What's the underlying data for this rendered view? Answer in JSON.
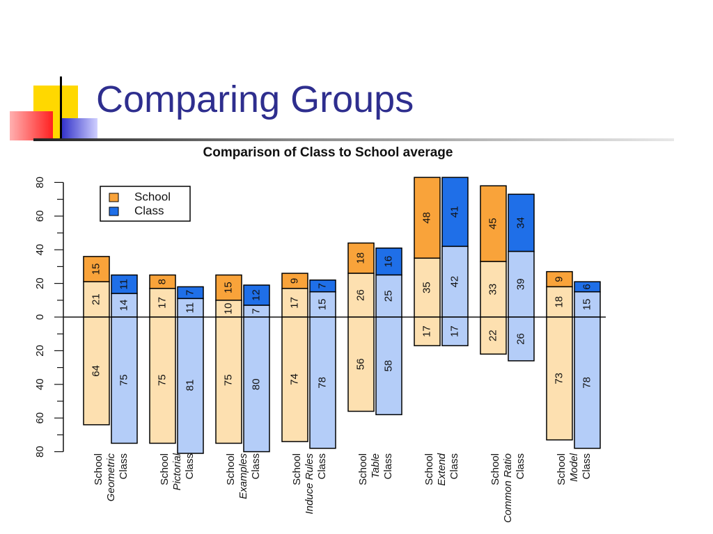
{
  "slide": {
    "title": "Comparing Groups"
  },
  "chart_data": {
    "type": "bar",
    "title": "Comparison of Class to School average",
    "ylim": [
      -80,
      80
    ],
    "yticks": [
      80,
      60,
      40,
      20,
      0,
      20,
      40,
      60,
      80
    ],
    "legend": {
      "placement": "top-left",
      "entries": [
        {
          "name": "School",
          "color": "#f9a33a"
        },
        {
          "name": "Class",
          "color": "#1f6fe8"
        }
      ]
    },
    "colors": {
      "school_dark": "#f9a33a",
      "school_light": "#fde0b0",
      "class_dark": "#1f6fe8",
      "class_light": "#b4cdf8"
    },
    "groups": [
      {
        "labels": [
          "School",
          "Geometric",
          "Class"
        ],
        "school": {
          "top": 15,
          "mid": 21,
          "bottom": 64
        },
        "class": {
          "top": 11,
          "mid": 14,
          "bottom": 75
        }
      },
      {
        "labels": [
          "School",
          "Pictorial",
          "Class"
        ],
        "school": {
          "top": 8,
          "mid": 17,
          "bottom": 75
        },
        "class": {
          "top": 7,
          "mid": 11,
          "bottom": 81
        }
      },
      {
        "labels": [
          "School",
          "Examples",
          "Class"
        ],
        "school": {
          "top": 15,
          "mid": 10,
          "bottom": 75
        },
        "class": {
          "top": 12,
          "mid": 7,
          "bottom": 80
        }
      },
      {
        "labels": [
          "School",
          "Induce Rules",
          "Class"
        ],
        "school": {
          "top": 9,
          "mid": 17,
          "bottom": 74
        },
        "class": {
          "top": 7,
          "mid": 15,
          "bottom": 78
        }
      },
      {
        "labels": [
          "School",
          "Table",
          "Class"
        ],
        "school": {
          "top": 18,
          "mid": 26,
          "bottom": 56
        },
        "class": {
          "top": 16,
          "mid": 25,
          "bottom": 58
        }
      },
      {
        "labels": [
          "School",
          "Extend",
          "Class"
        ],
        "school": {
          "top": 48,
          "mid": 35,
          "bottom": 17
        },
        "class": {
          "top": 41,
          "mid": 42,
          "bottom": 17
        }
      },
      {
        "labels": [
          "School",
          "Common Ratio",
          "Class"
        ],
        "school": {
          "top": 45,
          "mid": 33,
          "bottom": 22
        },
        "class": {
          "top": 34,
          "mid": 39,
          "bottom": 26
        }
      },
      {
        "labels": [
          "School",
          "Model",
          "Class"
        ],
        "school": {
          "top": 9,
          "mid": 18,
          "bottom": 73
        },
        "class": {
          "top": 6,
          "mid": 15,
          "bottom": 78
        }
      }
    ]
  }
}
